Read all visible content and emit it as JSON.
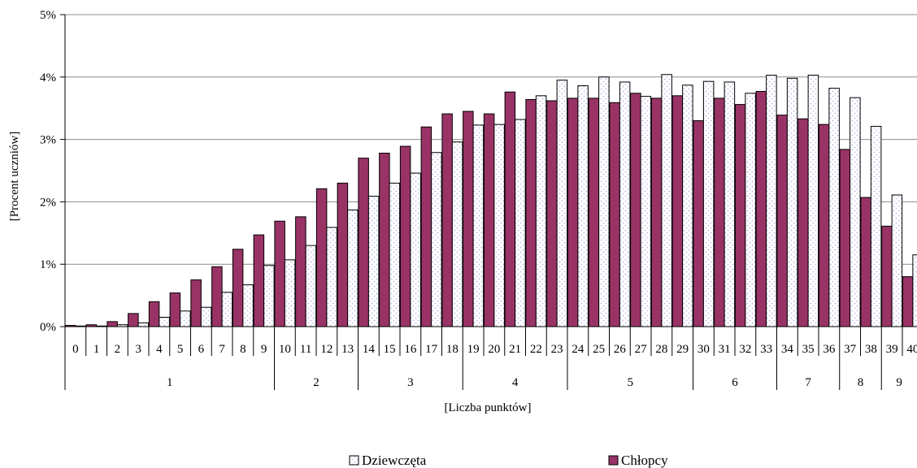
{
  "chart_data": {
    "type": "bar",
    "title": "",
    "xlabel": "[Liczba punktów]",
    "ylabel": "[Procent uczniów]",
    "ylim": [
      0,
      5
    ],
    "yticks": [
      "0%",
      "1%",
      "2%",
      "3%",
      "4%",
      "5%"
    ],
    "grid": true,
    "legend_position": "bottom",
    "categories": [
      "0",
      "1",
      "2",
      "3",
      "4",
      "5",
      "6",
      "7",
      "8",
      "9",
      "10",
      "11",
      "12",
      "13",
      "14",
      "15",
      "16",
      "17",
      "18",
      "19",
      "20",
      "21",
      "22",
      "23",
      "24",
      "25",
      "26",
      "27",
      "28",
      "29",
      "30",
      "31",
      "32",
      "33",
      "34",
      "35",
      "36",
      "37",
      "38",
      "39",
      "40"
    ],
    "groups": [
      {
        "label": "1",
        "from": 0,
        "to": 9
      },
      {
        "label": "2",
        "from": 10,
        "to": 13
      },
      {
        "label": "3",
        "from": 14,
        "to": 18
      },
      {
        "label": "4",
        "from": 19,
        "to": 23
      },
      {
        "label": "5",
        "from": 24,
        "to": 29
      },
      {
        "label": "6",
        "from": 30,
        "to": 33
      },
      {
        "label": "7",
        "from": 34,
        "to": 36
      },
      {
        "label": "8",
        "from": 37,
        "to": 38
      },
      {
        "label": "9",
        "from": 39,
        "to": 40
      }
    ],
    "series": [
      {
        "name": "Dziewczęta",
        "color": "#ffffff",
        "pattern_color": "#b7b7e6",
        "values": [
          0.01,
          0.01,
          0.03,
          0.06,
          0.15,
          0.25,
          0.31,
          0.55,
          0.67,
          0.98,
          1.07,
          1.3,
          1.59,
          1.87,
          2.09,
          2.3,
          2.46,
          2.79,
          2.96,
          3.23,
          3.24,
          3.32,
          3.7,
          3.95,
          3.86,
          4.0,
          3.92,
          3.69,
          4.04,
          3.87,
          3.93,
          3.92,
          3.74,
          4.03,
          3.98,
          4.03,
          3.82,
          3.67,
          3.21,
          2.11,
          1.15
        ]
      },
      {
        "name": "Chłopcy",
        "color": "#993366",
        "values": [
          0.02,
          0.03,
          0.08,
          0.21,
          0.4,
          0.54,
          0.75,
          0.96,
          1.24,
          1.47,
          1.69,
          1.76,
          2.21,
          2.3,
          2.7,
          2.78,
          2.89,
          3.2,
          3.41,
          3.45,
          3.41,
          3.76,
          3.64,
          3.62,
          3.66,
          3.66,
          3.59,
          3.74,
          3.66,
          3.7,
          3.3,
          3.66,
          3.56,
          3.77,
          3.39,
          3.33,
          3.24,
          2.84,
          2.07,
          1.61,
          0.8
        ]
      }
    ]
  }
}
